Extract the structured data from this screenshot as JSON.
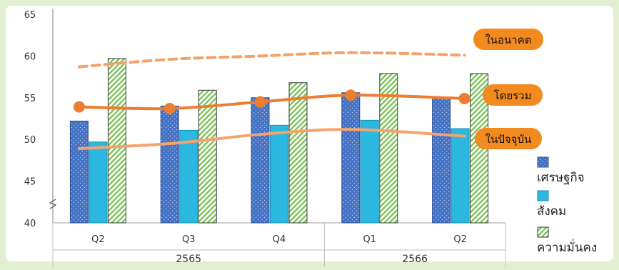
{
  "chart_data": {
    "type": "bar",
    "categories": [
      "Q2",
      "Q3",
      "Q4",
      "Q1",
      "Q2"
    ],
    "groups": [
      {
        "label": "2565",
        "categories": [
          0,
          1,
          2
        ]
      },
      {
        "label": "2566",
        "categories": [
          3,
          4
        ]
      }
    ],
    "series": [
      {
        "name": "เศรษฐกิจ",
        "values": [
          52.2,
          54.0,
          55.0,
          55.6,
          54.9
        ],
        "color": "#4472c4",
        "pattern": "dots"
      },
      {
        "name": "สังคม",
        "values": [
          49.7,
          51.1,
          51.7,
          52.3,
          51.3
        ],
        "color": "#2bb8e0",
        "pattern": "solid"
      },
      {
        "name": "ความมั่นคง",
        "values": [
          59.7,
          55.9,
          56.8,
          57.9,
          57.9
        ],
        "color": "#8fcf6e",
        "pattern": "hatch"
      }
    ],
    "lines": [
      {
        "name": "ในอนาคต",
        "values": [
          58.7,
          59.6,
          60.0,
          60.4,
          60.1
        ],
        "color": "#f2a26b",
        "style": "dashed"
      },
      {
        "name": "โดยรวม",
        "values": [
          53.9,
          53.7,
          54.5,
          55.3,
          54.9
        ],
        "color": "#ed7d31",
        "style": "solid-markers"
      },
      {
        "name": "ในปัจจุบัน",
        "values": [
          48.9,
          49.5,
          50.6,
          51.2,
          50.4
        ],
        "color": "#f4a36f",
        "style": "solid"
      }
    ],
    "ylim": [
      40,
      65
    ],
    "yticks": [
      40,
      45,
      50,
      55,
      60,
      65
    ],
    "axis_break": true,
    "legend_position": "right",
    "grid": false
  }
}
